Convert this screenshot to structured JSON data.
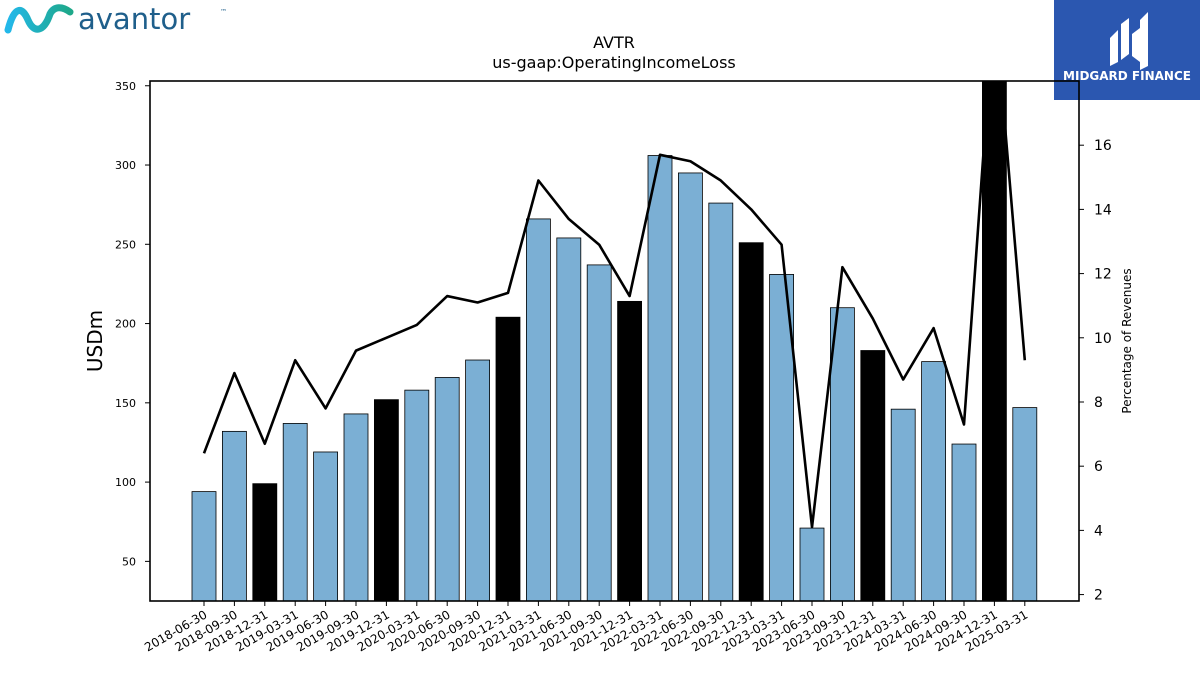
{
  "header": {
    "brand_name": "avantor",
    "brand_tm": "™",
    "brand_color": "#1f5f8b",
    "brand_accent": "#2bb4e6",
    "watermark_name": "MIDGARD FINANCE",
    "watermark_bg": "#2b57b0"
  },
  "chart_data": {
    "type": "bar",
    "title": "AVTR",
    "subtitle": "us-gaap:OperatingIncomeLoss",
    "ylabel": "USDm",
    "y2label": "Percentage of Revenues",
    "ylim": [
      25,
      353
    ],
    "y2lim": [
      1.8,
      18.0
    ],
    "yticks": [
      50,
      100,
      150,
      200,
      250,
      300,
      350
    ],
    "y2ticks": [
      2,
      4,
      6,
      8,
      10,
      12,
      14,
      16
    ],
    "bar_color": "#7bafd4",
    "q4_bar_color": "#000000",
    "line_color": "#000000",
    "categories": [
      "2018-06-30",
      "2018-09-30",
      "2018-12-31",
      "2019-03-31",
      "2019-06-30",
      "2019-09-30",
      "2019-12-31",
      "2020-03-31",
      "2020-06-30",
      "2020-09-30",
      "2020-12-31",
      "2021-03-31",
      "2021-06-30",
      "2021-09-30",
      "2021-12-31",
      "2022-03-31",
      "2022-06-30",
      "2022-09-30",
      "2022-12-31",
      "2023-03-31",
      "2023-06-30",
      "2023-09-30",
      "2023-12-31",
      "2024-03-31",
      "2024-06-30",
      "2024-09-30",
      "2024-12-31",
      "2025-03-31"
    ],
    "series": [
      {
        "values": [
          94,
          132,
          99,
          137,
          119,
          143,
          152,
          158,
          166,
          177,
          204,
          266,
          254,
          237,
          214,
          306,
          295,
          276,
          251,
          231,
          71,
          210,
          183,
          146,
          176,
          124,
          360,
          147
        ]
      },
      {
        "axis": "right",
        "type": "line",
        "values": [
          6.4,
          8.9,
          6.7,
          9.3,
          7.8,
          9.6,
          10.0,
          10.4,
          11.3,
          11.1,
          11.4,
          14.9,
          13.7,
          12.9,
          11.3,
          15.7,
          15.5,
          14.9,
          14.0,
          12.9,
          4.1,
          12.2,
          10.6,
          8.7,
          10.3,
          7.3,
          20.5,
          9.3
        ]
      }
    ],
    "q4_flags": [
      false,
      false,
      true,
      false,
      false,
      false,
      true,
      false,
      false,
      false,
      true,
      false,
      false,
      false,
      true,
      false,
      false,
      false,
      true,
      false,
      false,
      false,
      true,
      false,
      false,
      false,
      true,
      false
    ],
    "legend": "none",
    "grid": false
  }
}
